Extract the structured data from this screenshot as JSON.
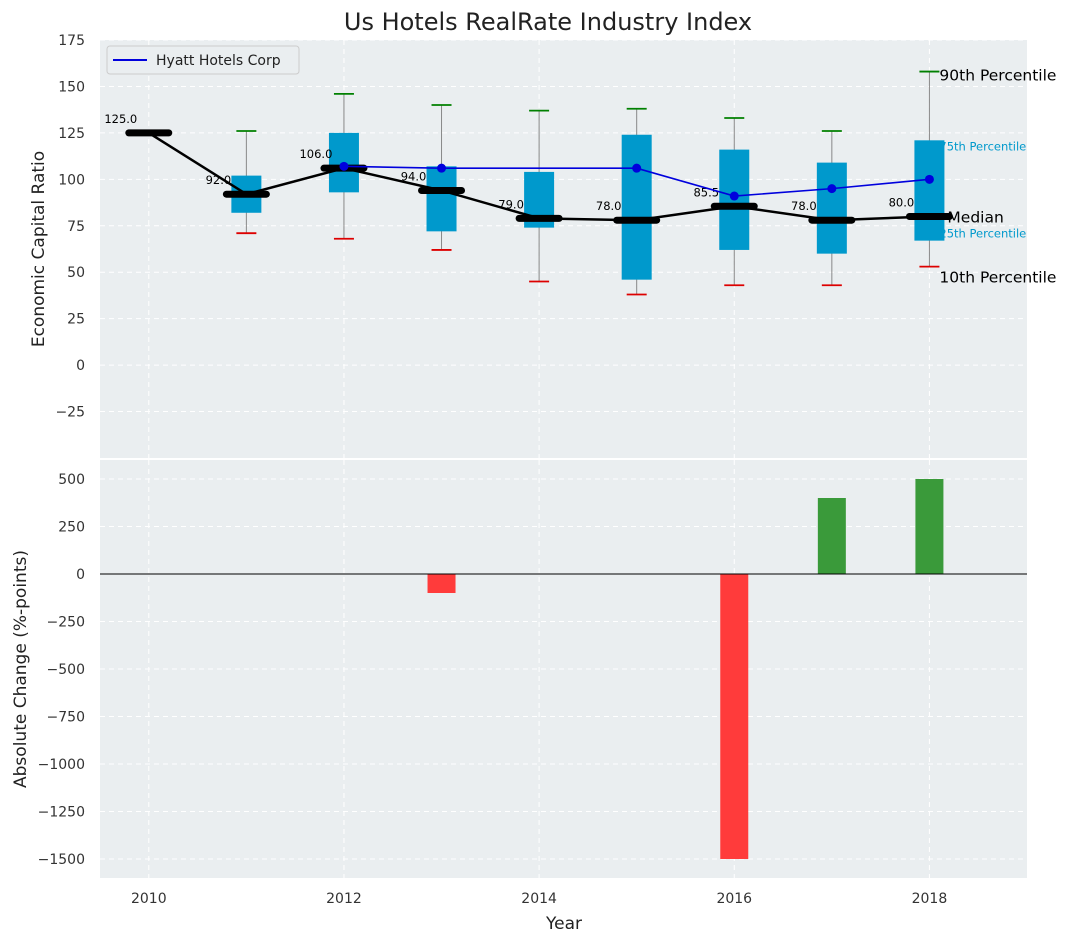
{
  "chart_data": {
    "type": "box-line-bar",
    "title": "Us Hotels RealRate Industry Index",
    "xlabel": "Year",
    "top_panel": {
      "ylabel": "Economic Capital Ratio",
      "ylim": [
        -50,
        175
      ],
      "yticks": [
        -25,
        0,
        25,
        50,
        75,
        100,
        125,
        150,
        175
      ],
      "ytick_labels": [
        "−25",
        "0",
        "25",
        "50",
        "75",
        "100",
        "125",
        "150",
        "175"
      ],
      "legend": {
        "position": "top-left",
        "entries": [
          "Hyatt Hotels Corp"
        ]
      },
      "years": [
        2010,
        2011,
        2012,
        2013,
        2014,
        2015,
        2016,
        2017,
        2018
      ],
      "median": [
        125.0,
        92.0,
        106.0,
        94.0,
        79.0,
        78.0,
        85.5,
        78.0,
        80.0
      ],
      "median_labels": [
        "125.0",
        "92.0",
        "106.0",
        "94.0",
        "79.0",
        "78.0",
        "85.5",
        "78.0",
        "80.0"
      ],
      "boxes": [
        {
          "year": 2011,
          "p10": 71,
          "p25": 82,
          "p75": 102,
          "p90": 126
        },
        {
          "year": 2012,
          "p10": 68,
          "p25": 93,
          "p75": 125,
          "p90": 146
        },
        {
          "year": 2013,
          "p10": 62,
          "p25": 72,
          "p75": 107,
          "p90": 140
        },
        {
          "year": 2014,
          "p10": 45,
          "p25": 74,
          "p75": 104,
          "p90": 137
        },
        {
          "year": 2015,
          "p10": 38,
          "p25": 46,
          "p75": 124,
          "p90": 138
        },
        {
          "year": 2016,
          "p10": 43,
          "p25": 62,
          "p75": 116,
          "p90": 133
        },
        {
          "year": 2017,
          "p10": 43,
          "p25": 60,
          "p75": 109,
          "p90": 126
        },
        {
          "year": 2018,
          "p10": 53,
          "p25": 67,
          "p75": 121,
          "p90": 158
        }
      ],
      "company_series": {
        "name": "Hyatt Hotels Corp",
        "years": [
          2012,
          2013,
          2015,
          2016,
          2017,
          2018
        ],
        "values": [
          107,
          106,
          106,
          91,
          95,
          100
        ]
      },
      "annotations": {
        "p90": "90th Percentile",
        "p75": "75th Percentile",
        "median": "Median",
        "p25": "25th Percentile",
        "p10": "10th Percentile"
      }
    },
    "bottom_panel": {
      "ylabel": "Absolute Change (%-points)",
      "ylim": [
        -1600,
        600
      ],
      "yticks": [
        -1500,
        -1250,
        -1000,
        -750,
        -500,
        -250,
        0,
        250,
        500
      ],
      "ytick_labels": [
        "−1500",
        "−1250",
        "−1000",
        "−750",
        "−500",
        "−250",
        "0",
        "250",
        "500"
      ],
      "bars": [
        {
          "year": 2013,
          "value": -100
        },
        {
          "year": 2016,
          "value": -1500
        },
        {
          "year": 2017,
          "value": 400
        },
        {
          "year": 2018,
          "value": 500
        }
      ]
    },
    "xlim": [
      2009.5,
      2019
    ],
    "xticks": [
      2010,
      2012,
      2014,
      2016,
      2018
    ],
    "xtick_labels": [
      "2010",
      "2012",
      "2014",
      "2016",
      "2018"
    ],
    "colors": {
      "box": "#0099cc",
      "company": "#0000dd",
      "median_line": "#000000",
      "whisker": "#888888",
      "p90_cap": "#008000",
      "p10_cap": "#dd0000",
      "positive_bar": "#3a9a3a",
      "negative_bar": "#ff3b3b",
      "plot_bg": "#eaeef0"
    }
  }
}
